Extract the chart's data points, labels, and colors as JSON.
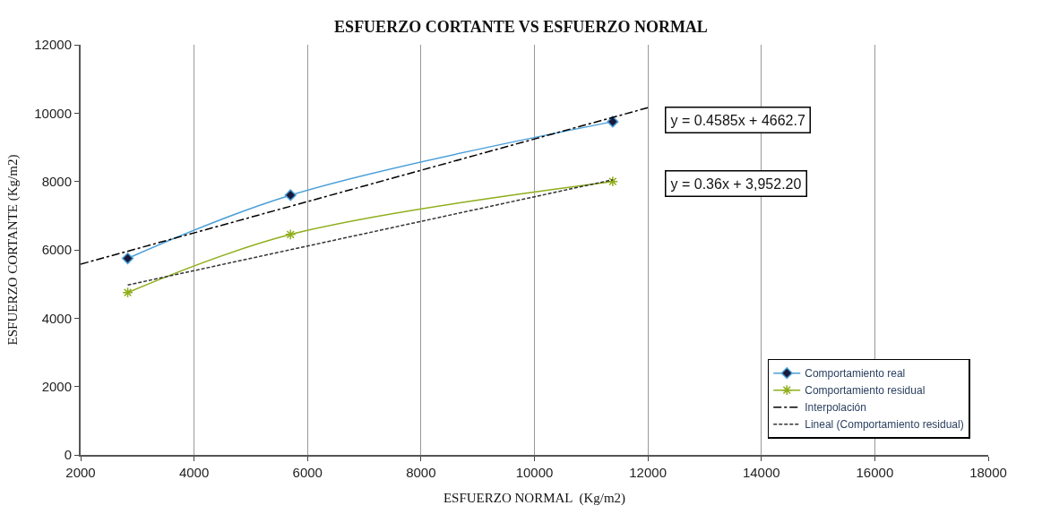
{
  "chart_data": {
    "type": "line",
    "title": "ESFUERZO CORTANTE VS ESFUERZO NORMAL",
    "xlabel": "ESFUERZO NORMAL  (Kg/m2)",
    "ylabel": "ESFUERZO CORTANTE (Kg/m2)",
    "series": [
      {
        "name": "Comportamiento real",
        "color": "#4a9fd8",
        "x": [
          2830,
          5700,
          11380
        ],
        "values": [
          5750,
          7600,
          9750
        ],
        "marker": "diamond",
        "line_style": "solid"
      },
      {
        "name": "Comportamiento residual",
        "color": "#8fae1b",
        "x": [
          2830,
          5700,
          11380
        ],
        "values": [
          4750,
          6450,
          8000
        ],
        "marker": "cross",
        "line_style": "solid"
      },
      {
        "name": "Interpolación",
        "color": "#000000",
        "x": [
          2000,
          12000
        ],
        "values": [
          5580,
          10160
        ],
        "marker": "none",
        "line_style": "dashdot"
      },
      {
        "name": "Lineal (Comportamiento residual)",
        "color": "#333333",
        "x": [
          2830,
          11380
        ],
        "values": [
          4970,
          8050
        ],
        "marker": "none",
        "line_style": "dashed"
      }
    ],
    "annotations": [
      "y = 0.4585x + 4662.7",
      "y = 0.36x + 3,952.20"
    ],
    "xlim": [
      2000,
      18000
    ],
    "xticks": [
      2000,
      4000,
      6000,
      8000,
      10000,
      12000,
      14000,
      16000,
      18000
    ],
    "ylim": [
      0,
      12000
    ],
    "yticks": [
      0,
      2000,
      4000,
      6000,
      8000,
      10000,
      12000
    ],
    "grid": "x",
    "legend": "bottom right"
  }
}
